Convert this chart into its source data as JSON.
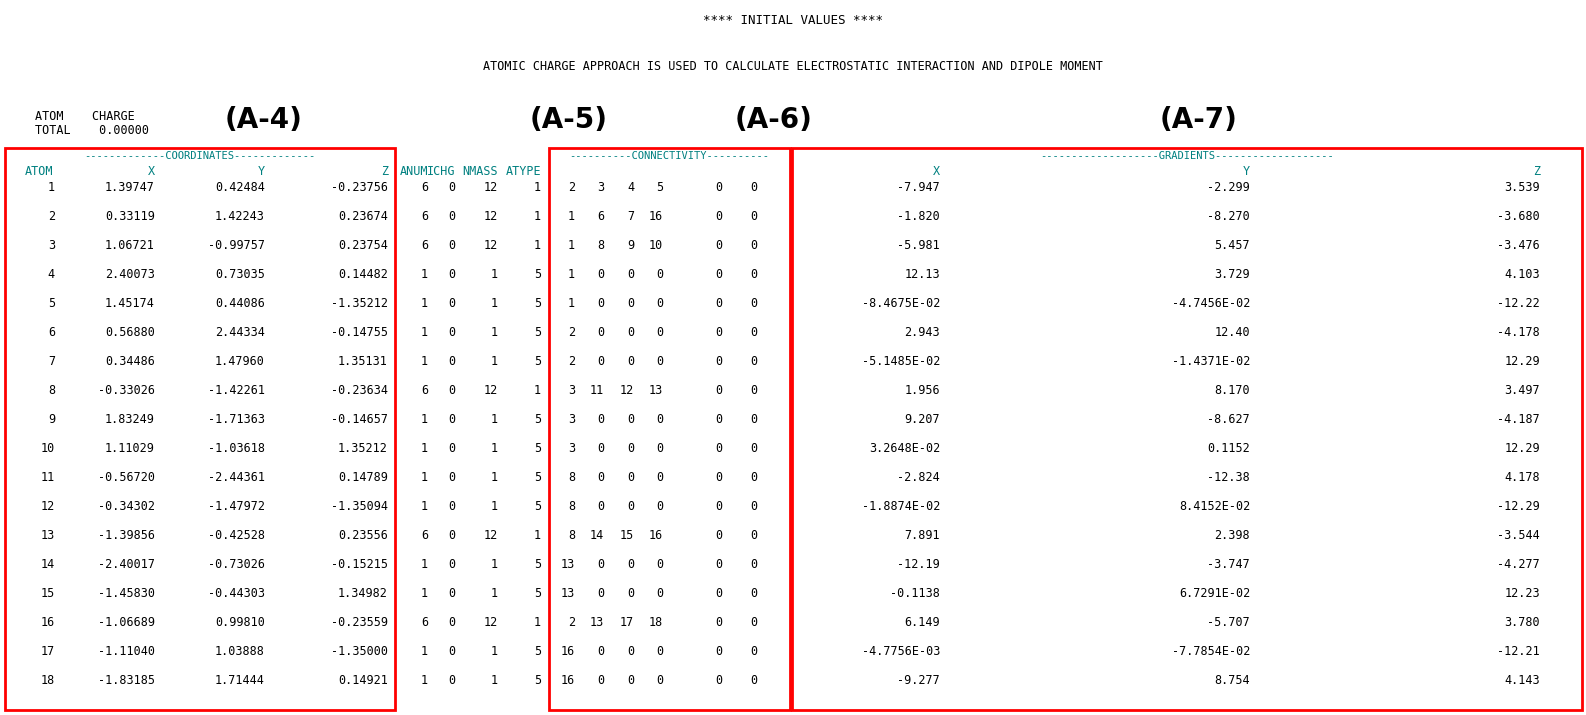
{
  "title_line1": "**** INITIAL VALUES ****",
  "title_line2": "ATOMIC CHARGE APPROACH IS USED TO CALCULATE ELECTROSTATIC INTERACTION AND DIPOLE MOMENT",
  "label_A4": "(A-4)",
  "label_A5": "(A-5)",
  "label_A6": "(A-6)",
  "label_A7": "(A-7)",
  "atom_data": [
    [
      1,
      "1.39747",
      "0.42484",
      "-0.23756",
      6,
      0,
      12,
      1,
      2,
      3,
      4,
      5,
      0,
      0,
      "-7.947",
      "-2.299",
      "3.539"
    ],
    [
      2,
      "0.33119",
      "1.42243",
      "0.23674",
      6,
      0,
      12,
      1,
      1,
      6,
      7,
      16,
      0,
      0,
      "-1.820",
      "-8.270",
      "-3.680"
    ],
    [
      3,
      "1.06721",
      "-0.99757",
      "0.23754",
      6,
      0,
      12,
      1,
      1,
      8,
      9,
      10,
      0,
      0,
      "-5.981",
      "5.457",
      "-3.476"
    ],
    [
      4,
      "2.40073",
      "0.73035",
      "0.14482",
      1,
      0,
      1,
      5,
      1,
      0,
      0,
      0,
      0,
      0,
      "12.13",
      "3.729",
      "4.103"
    ],
    [
      5,
      "1.45174",
      "0.44086",
      "-1.35212",
      1,
      0,
      1,
      5,
      1,
      0,
      0,
      0,
      0,
      0,
      "-8.4675E-02",
      "-4.7456E-02",
      "-12.22"
    ],
    [
      6,
      "0.56880",
      "2.44334",
      "-0.14755",
      1,
      0,
      1,
      5,
      2,
      0,
      0,
      0,
      0,
      0,
      "2.943",
      "12.40",
      "-4.178"
    ],
    [
      7,
      "0.34486",
      "1.47960",
      "1.35131",
      1,
      0,
      1,
      5,
      2,
      0,
      0,
      0,
      0,
      0,
      "-5.1485E-02",
      "-1.4371E-02",
      "12.29"
    ],
    [
      8,
      "-0.33026",
      "-1.42261",
      "-0.23634",
      6,
      0,
      12,
      1,
      3,
      11,
      12,
      13,
      0,
      0,
      "1.956",
      "8.170",
      "3.497"
    ],
    [
      9,
      "1.83249",
      "-1.71363",
      "-0.14657",
      1,
      0,
      1,
      5,
      3,
      0,
      0,
      0,
      0,
      0,
      "9.207",
      "-8.627",
      "-4.187"
    ],
    [
      10,
      "1.11029",
      "-1.03618",
      "1.35212",
      1,
      0,
      1,
      5,
      3,
      0,
      0,
      0,
      0,
      0,
      "3.2648E-02",
      "0.1152",
      "12.29"
    ],
    [
      11,
      "-0.56720",
      "-2.44361",
      "0.14789",
      1,
      0,
      1,
      5,
      8,
      0,
      0,
      0,
      0,
      0,
      "-2.824",
      "-12.38",
      "4.178"
    ],
    [
      12,
      "-0.34302",
      "-1.47972",
      "-1.35094",
      1,
      0,
      1,
      5,
      8,
      0,
      0,
      0,
      0,
      0,
      "-1.8874E-02",
      "8.4152E-02",
      "-12.29"
    ],
    [
      13,
      "-1.39856",
      "-0.42528",
      "0.23556",
      6,
      0,
      12,
      1,
      8,
      14,
      15,
      16,
      0,
      0,
      "7.891",
      "2.398",
      "-3.544"
    ],
    [
      14,
      "-2.40017",
      "-0.73026",
      "-0.15215",
      1,
      0,
      1,
      5,
      13,
      0,
      0,
      0,
      0,
      0,
      "-12.19",
      "-3.747",
      "-4.277"
    ],
    [
      15,
      "-1.45830",
      "-0.44303",
      "1.34982",
      1,
      0,
      1,
      5,
      13,
      0,
      0,
      0,
      0,
      0,
      "-0.1138",
      "6.7291E-02",
      "12.23"
    ],
    [
      16,
      "-1.06689",
      "0.99810",
      "-0.23559",
      6,
      0,
      12,
      1,
      2,
      13,
      17,
      18,
      0,
      0,
      "6.149",
      "-5.707",
      "3.780"
    ],
    [
      17,
      "-1.11040",
      "1.03888",
      "-1.35000",
      1,
      0,
      1,
      5,
      16,
      0,
      0,
      0,
      0,
      0,
      "-4.7756E-03",
      "-7.7854E-02",
      "-12.21"
    ],
    [
      18,
      "-1.83185",
      "1.71444",
      "0.14921",
      1,
      0,
      1,
      5,
      16,
      0,
      0,
      0,
      0,
      0,
      "-9.277",
      "8.754",
      "4.143"
    ]
  ],
  "bg_color": "#ffffff",
  "text_color": "#000000",
  "teal_color": "#008080",
  "box_color": "#ff0000"
}
